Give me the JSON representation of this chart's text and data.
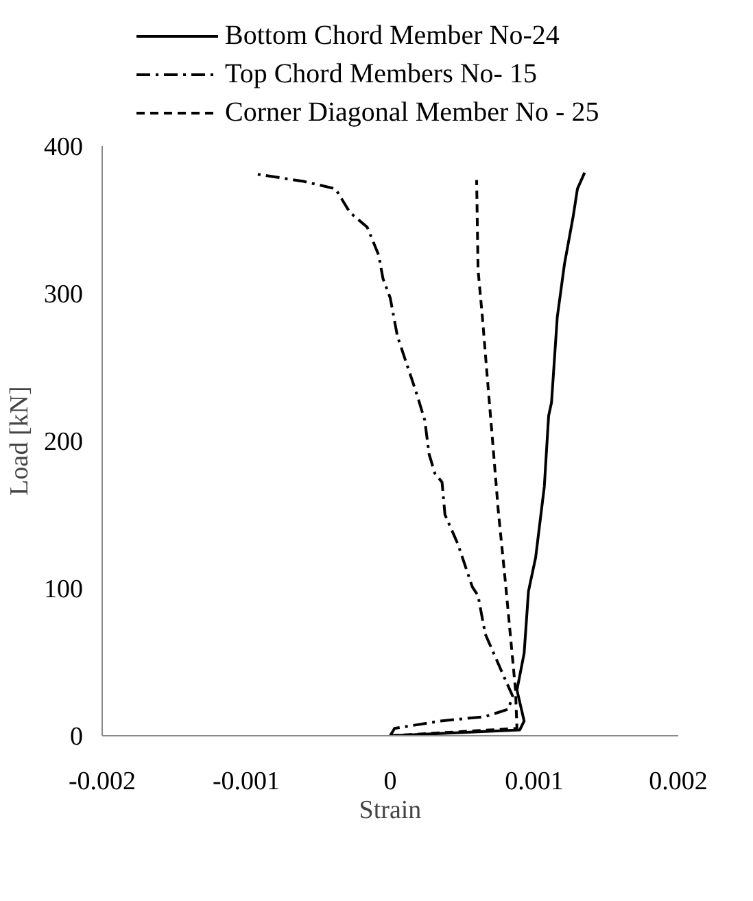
{
  "chart_data": {
    "type": "line",
    "xlabel": "Strain",
    "ylabel": "Load [kN]",
    "xlim": [
      -0.002,
      0.002
    ],
    "ylim": [
      0,
      400
    ],
    "xticks": [
      -0.002,
      -0.001,
      0,
      0.001,
      0.002
    ],
    "yticks": [
      0,
      100,
      200,
      300,
      400
    ],
    "grid": false,
    "legend": "top",
    "series": [
      {
        "name": "Bottom Chord Member No-24",
        "color": "#000000",
        "line_style": "solid",
        "x": [
          0,
          0.0009,
          0.00093,
          0.00088,
          0.00093,
          0.00096,
          0.00101,
          0.00107,
          0.0011,
          0.00112,
          0.00116,
          0.00121,
          0.00127,
          0.0013,
          0.00135
        ],
        "values": [
          0,
          4,
          10,
          31,
          56,
          98,
          121,
          169,
          217,
          226,
          284,
          320,
          352,
          371,
          382
        ]
      },
      {
        "name": "Top Chord Members No- 15",
        "color": "#000000",
        "line_style": "dashdot",
        "x": [
          0,
          3e-05,
          0.00035,
          0.00066,
          0.00082,
          0.00085,
          0.00079,
          0.00066,
          0.00061,
          0.00057,
          0.00047,
          0.00038,
          0.00036,
          0.00031,
          0.00027,
          0.00024,
          0.00019,
          0.00017,
          5e-05,
          0,
          -5e-05,
          -8e-05,
          -0.00016,
          -0.00028,
          -0.00033,
          -0.00038,
          -0.0006,
          -0.00093
        ],
        "values": [
          0,
          5,
          10,
          13,
          18,
          27,
          40,
          69,
          95,
          101,
          130,
          150,
          172,
          178,
          191,
          214,
          230,
          236,
          271,
          297,
          310,
          326,
          345,
          355,
          363,
          371,
          376,
          381
        ]
      },
      {
        "name": "Corner Diagonal Member No - 25",
        "color": "#000000",
        "line_style": "dashed",
        "x": [
          0,
          0.00088,
          0.00087,
          0.0008,
          0.00075,
          0.00071,
          0.00068,
          0.00064,
          0.00061,
          0.0006
        ],
        "values": [
          0,
          5,
          31,
          104,
          153,
          201,
          236,
          284,
          316,
          377
        ]
      }
    ]
  }
}
